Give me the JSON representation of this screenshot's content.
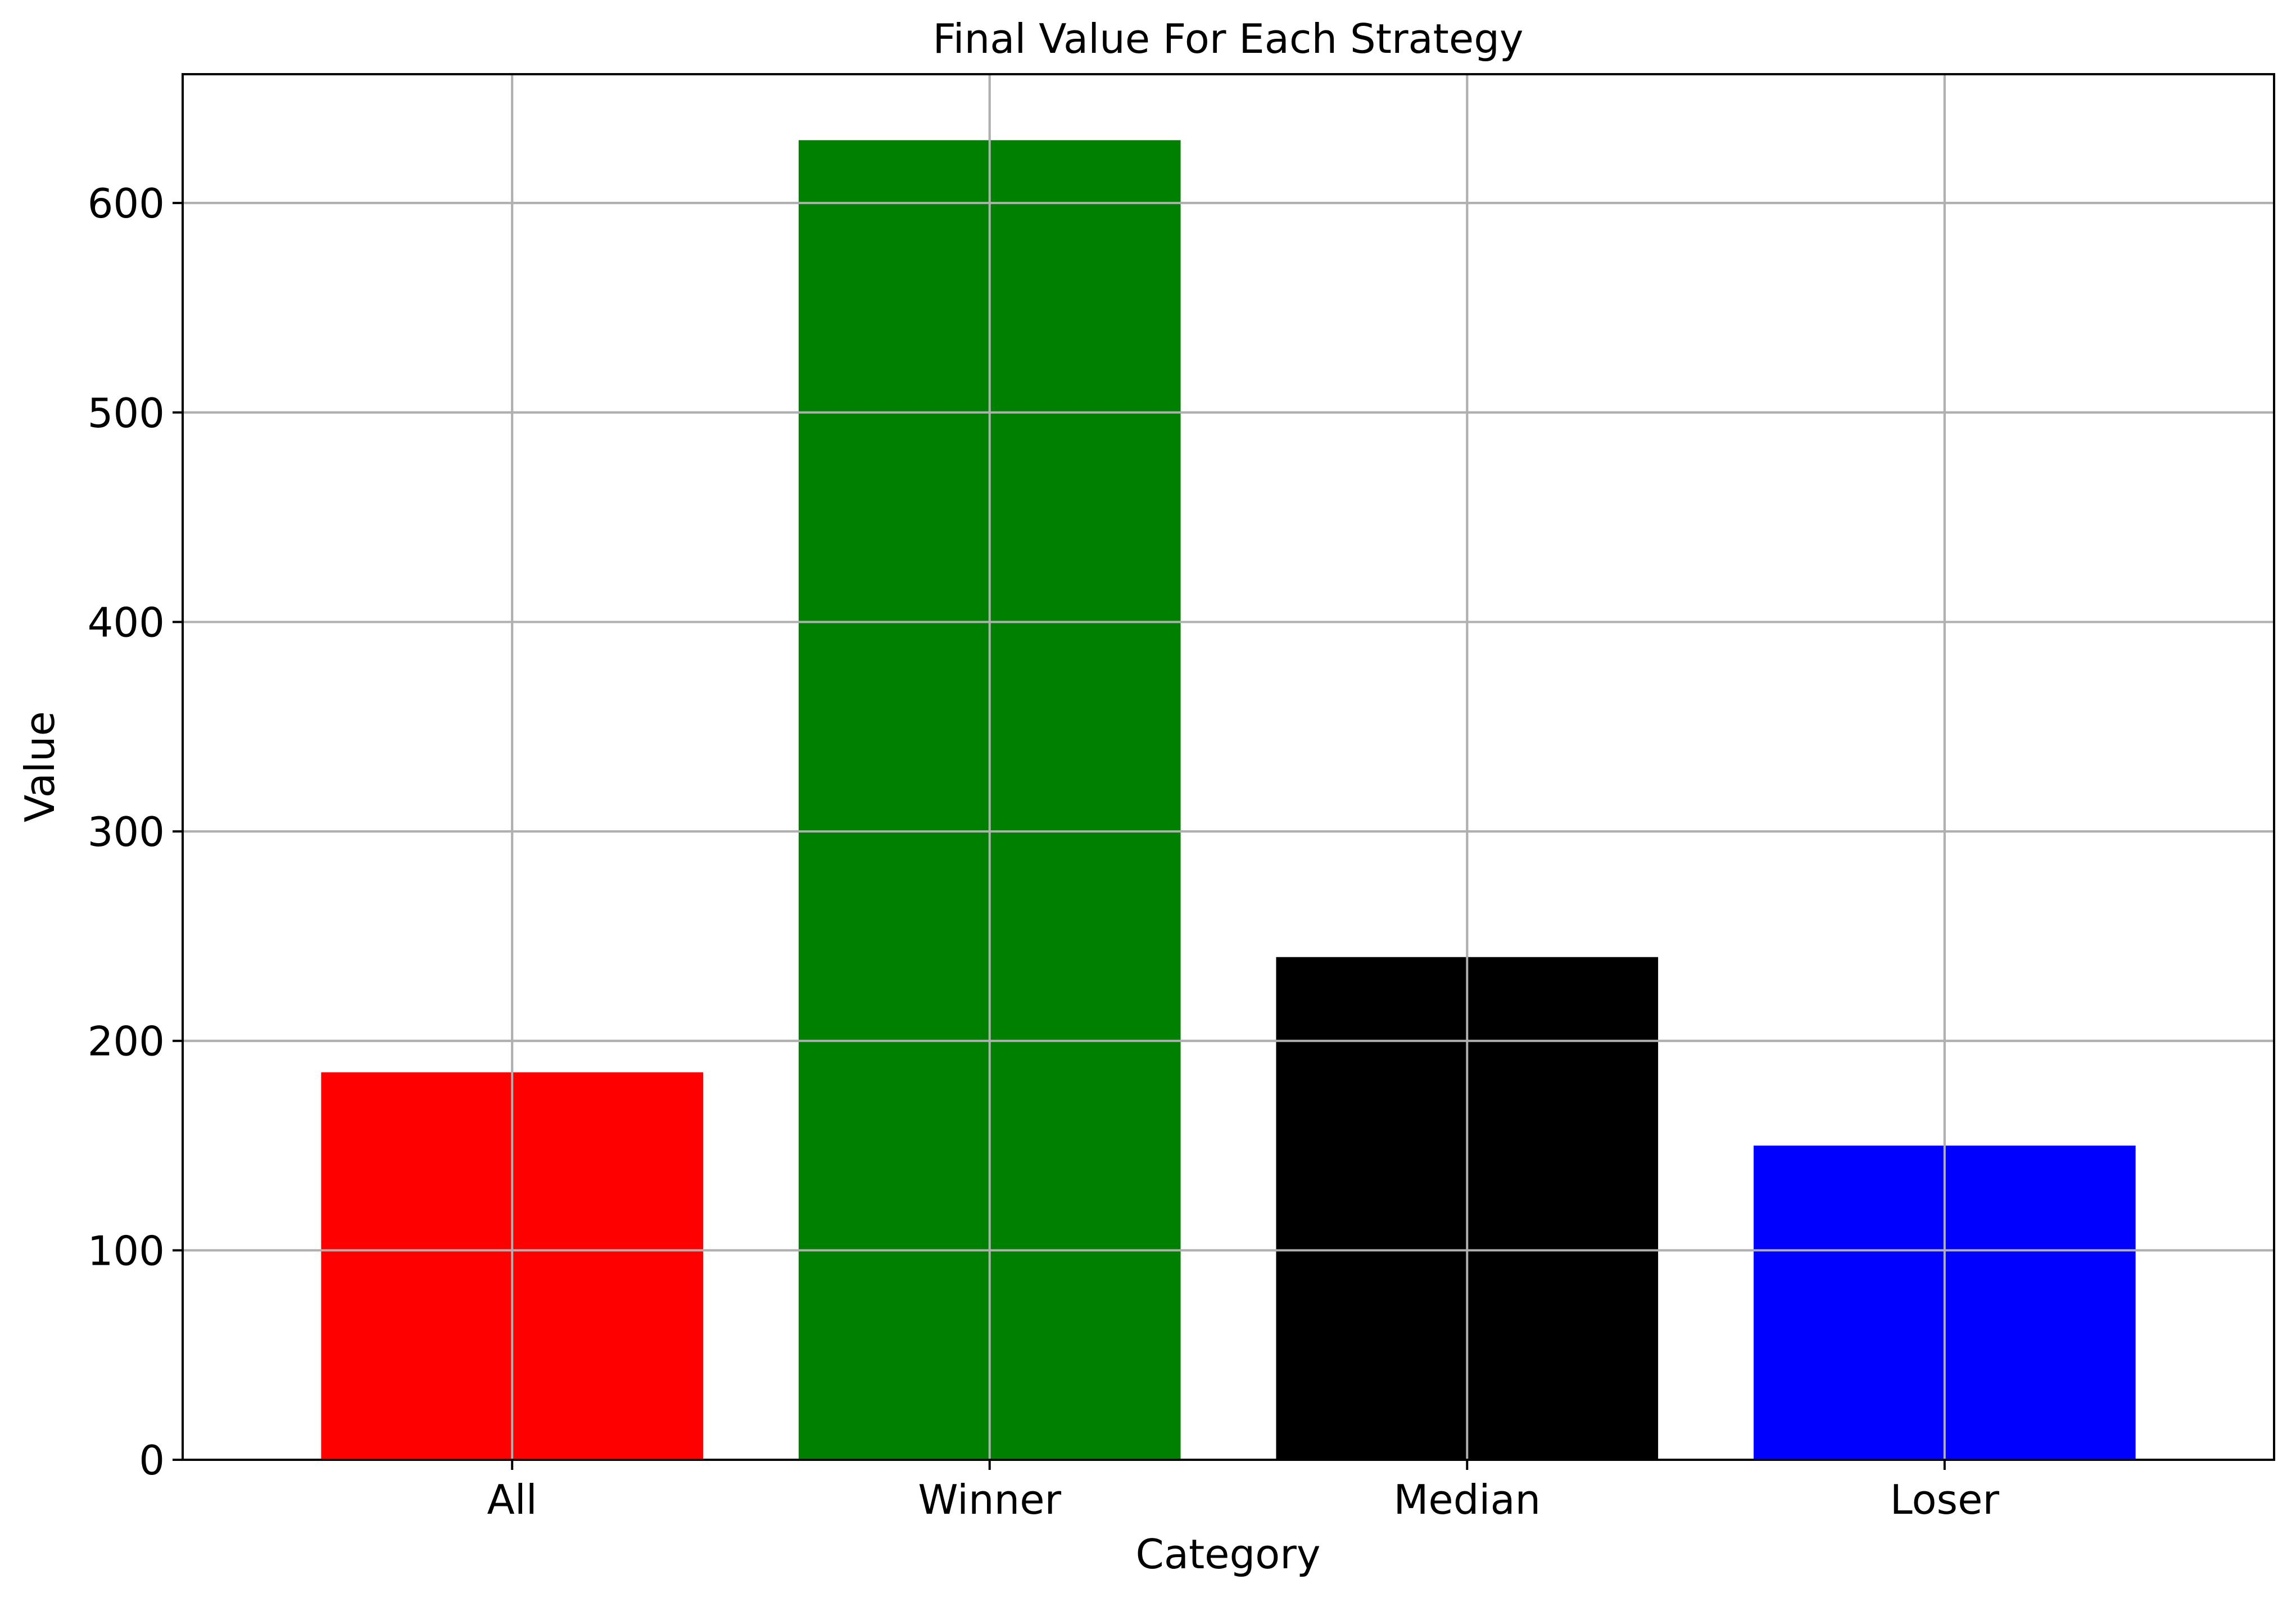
{
  "chart_data": {
    "type": "bar",
    "title": "Final Value For Each Strategy",
    "xlabel": "Category",
    "ylabel": "Value",
    "categories": [
      "All",
      "Winner",
      "Median",
      "Loser"
    ],
    "values": [
      185,
      630,
      240,
      150
    ],
    "bar_colors": [
      "#ff0000",
      "#008000",
      "#000000",
      "#0000ff"
    ],
    "ylim": [
      0,
      661.5
    ],
    "yticks": [
      0,
      100,
      200,
      300,
      400,
      500,
      600
    ],
    "grid": true
  }
}
